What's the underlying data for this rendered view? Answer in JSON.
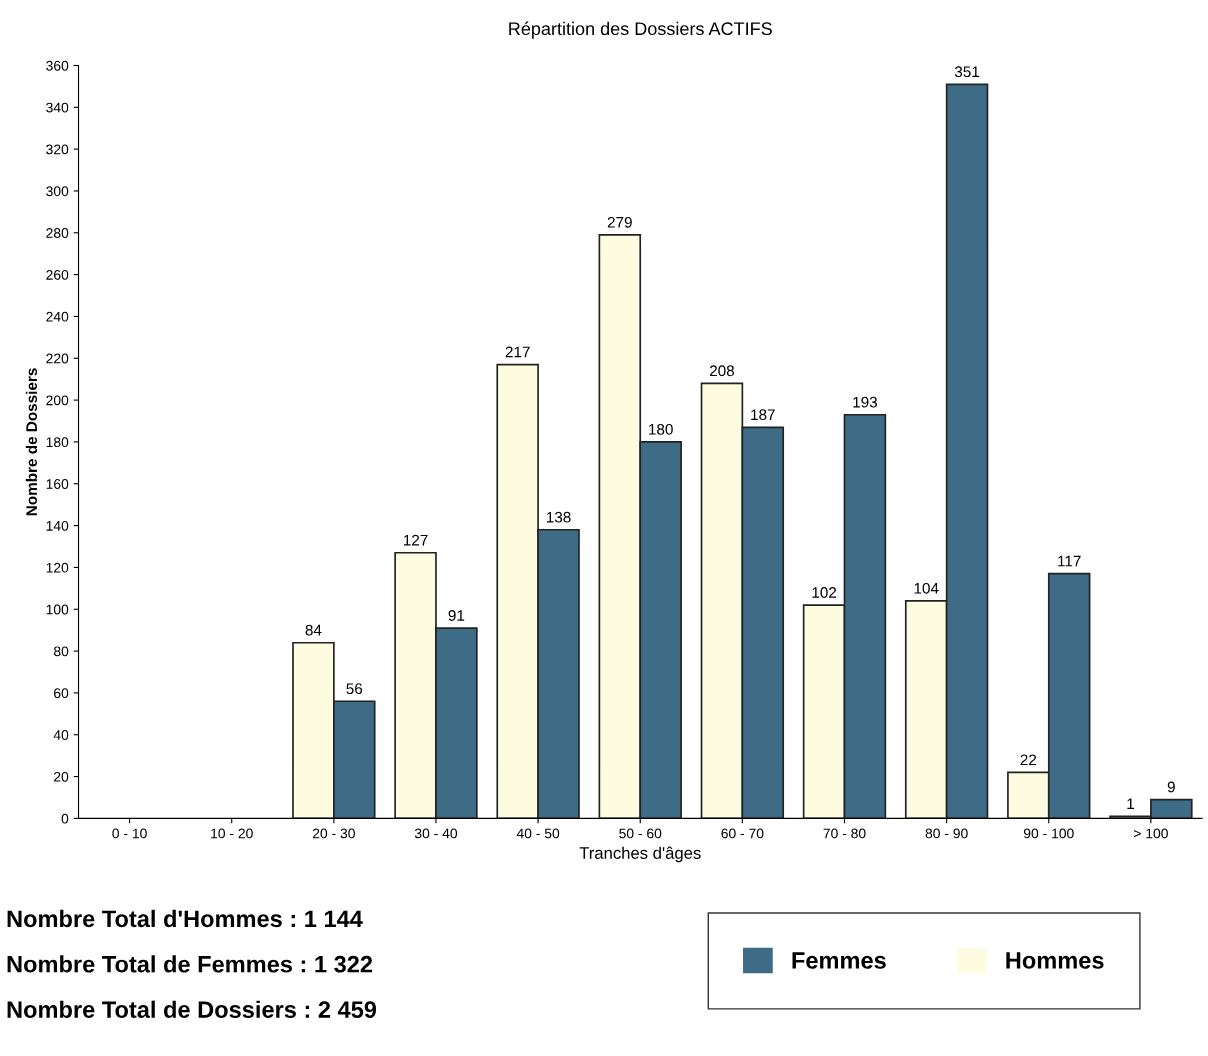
{
  "chart_data": {
    "type": "bar",
    "title": "Répartition des Dossiers ACTIFS",
    "xlabel": "Tranches d'âges",
    "ylabel": "Nombre de Dossiers",
    "categories": [
      "0 - 10",
      "10 - 20",
      "20 - 30",
      "30 - 40",
      "40 - 50",
      "50 - 60",
      "60 - 70",
      "70 - 80",
      "80 - 90",
      "90 - 100",
      "> 100"
    ],
    "series": [
      {
        "name": "Hommes",
        "color": "#fdfbe0",
        "values": [
          null,
          null,
          84,
          127,
          217,
          279,
          208,
          102,
          104,
          22,
          1
        ],
        "value_labels": [
          null,
          null,
          "84",
          "127",
          "217",
          "279",
          "208",
          "102",
          "104",
          "22",
          "1"
        ]
      },
      {
        "name": "Femmes",
        "color": "#3e6c86",
        "values": [
          null,
          null,
          56,
          91,
          138,
          180,
          187,
          193,
          351,
          117,
          9
        ],
        "value_labels": [
          null,
          null,
          "56",
          "91",
          "138",
          "180",
          "187",
          "193",
          "351",
          "117",
          "9"
        ]
      }
    ],
    "ylim": [
      0,
      360
    ],
    "yticks": [
      0,
      20,
      40,
      60,
      80,
      100,
      120,
      140,
      160,
      180,
      200,
      220,
      240,
      260,
      280,
      300,
      320,
      340,
      360
    ],
    "grid": false,
    "legend": "bottom right",
    "annotations": [
      "Nombre Total d'Hommes : 1 144",
      "Nombre Total de Femmes : 1 322",
      "Nombre Total de Dossiers : 2 459"
    ]
  }
}
